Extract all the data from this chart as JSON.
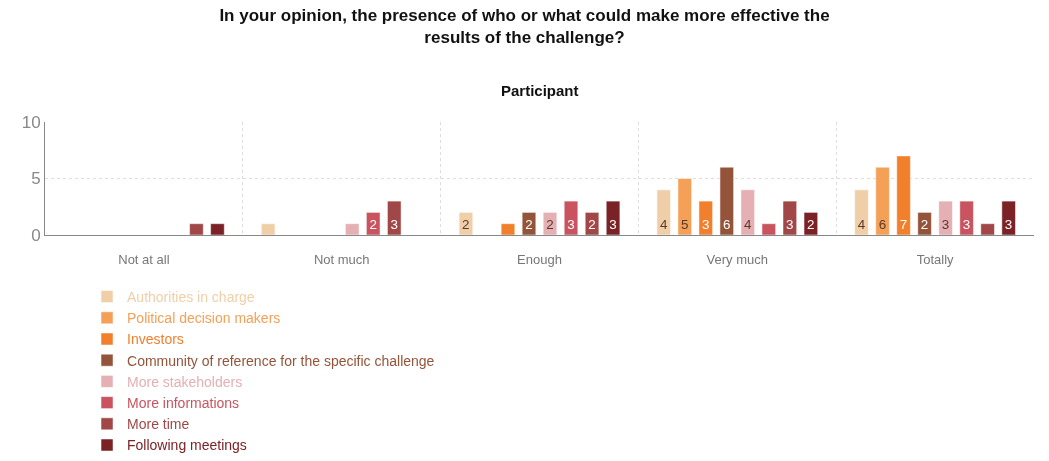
{
  "chart_data": {
    "type": "bar",
    "title": "In your opinion, the presence of who or what could make more effective the results of the challenge?",
    "subtitle": "Participant",
    "categories": [
      "Not at all",
      "Not much",
      "Enough",
      "Very much",
      "Totally"
    ],
    "series": [
      {
        "name": "Authorities in charge",
        "color": "#f0cfa8",
        "values": [
          null,
          1,
          2,
          4,
          4
        ],
        "value_labels": [
          null,
          null,
          "2",
          "4",
          "4"
        ]
      },
      {
        "name": "Political decision makers",
        "color": "#f5a057",
        "values": [
          null,
          null,
          null,
          5,
          6
        ],
        "value_labels": [
          null,
          null,
          null,
          "5",
          "6"
        ]
      },
      {
        "name": "Investors",
        "color": "#f27f2c",
        "values": [
          null,
          null,
          1,
          3,
          7
        ],
        "value_labels": [
          null,
          null,
          null,
          "3",
          "7"
        ]
      },
      {
        "name": "Community of reference for the specific challenge",
        "color": "#94543a",
        "values": [
          null,
          null,
          2,
          6,
          2
        ],
        "value_labels": [
          null,
          null,
          "2",
          "6",
          "2"
        ]
      },
      {
        "name": "More stakeholders",
        "color": "#e4b0b3",
        "values": [
          null,
          1,
          2,
          4,
          3
        ],
        "value_labels": [
          null,
          null,
          "2",
          "4",
          "3"
        ]
      },
      {
        "name": "More informations",
        "color": "#c9545f",
        "values": [
          null,
          2,
          3,
          1,
          3
        ],
        "value_labels": [
          null,
          "2",
          "3",
          null,
          "3"
        ]
      },
      {
        "name": "More time",
        "color": "#a14747",
        "values": [
          1,
          3,
          2,
          3,
          1
        ],
        "value_labels": [
          null,
          "3",
          "2",
          "3",
          null
        ]
      },
      {
        "name": "Following meetings",
        "color": "#7a2226",
        "values": [
          1,
          null,
          3,
          2,
          3
        ],
        "value_labels": [
          null,
          null,
          "3",
          "2",
          "3"
        ]
      }
    ],
    "ylim": [
      0,
      10
    ],
    "yticks": [
      0,
      5,
      10
    ],
    "grid": true,
    "legend": "bottom"
  }
}
